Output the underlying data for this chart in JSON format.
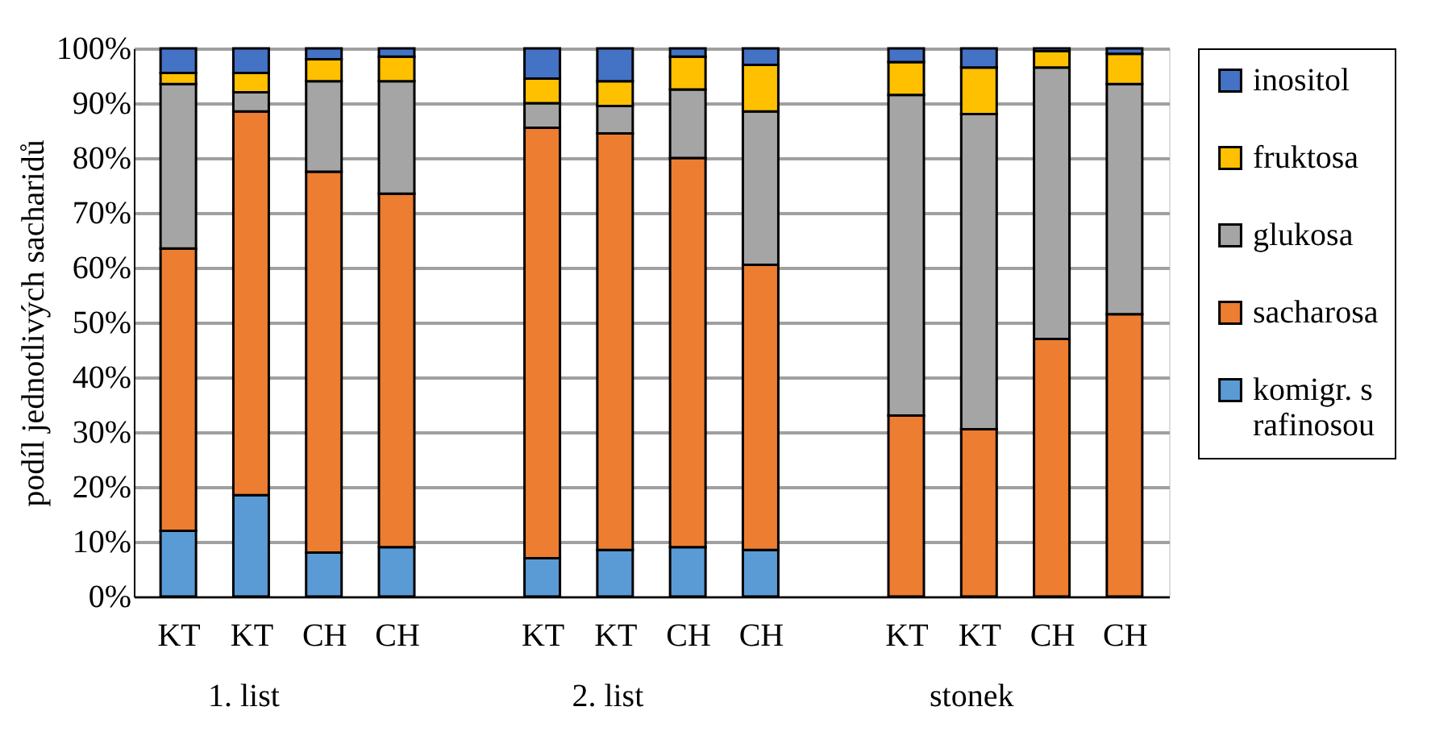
{
  "chart_data": {
    "type": "bar",
    "stacked": true,
    "ylabel": "podíl jednotlivých sacharidů",
    "categories": [
      "KT",
      "KT",
      "CH",
      "CH",
      null,
      "KT",
      "KT",
      "CH",
      "CH",
      null,
      "KT",
      "KT",
      "CH",
      "CH"
    ],
    "series": [
      {
        "name": "komigr. s rafinosou",
        "color": "#5b9bd5",
        "values": [
          12,
          18.5,
          8,
          9,
          null,
          7,
          8.5,
          9,
          8.5,
          null,
          0,
          0,
          null,
          null
        ]
      },
      {
        "name": "sacharosa",
        "color": "#ed7d31",
        "values": [
          51.5,
          70,
          69.5,
          64.5,
          null,
          78.5,
          76,
          71,
          52,
          null,
          33,
          30.5,
          47,
          51.5
        ]
      },
      {
        "name": "glukosa",
        "color": "#a5a5a5",
        "values": [
          30,
          3.5,
          16.5,
          20.5,
          null,
          4.5,
          5,
          12.5,
          28,
          null,
          58.5,
          57.5,
          49.5,
          42
        ]
      },
      {
        "name": "fruktosa",
        "color": "#ffc000",
        "values": [
          2,
          3.5,
          4,
          4.5,
          null,
          4.5,
          4.5,
          6,
          8.5,
          null,
          6,
          8.5,
          3,
          5.5
        ]
      },
      {
        "name": "inositol",
        "color": "#4472c4",
        "values": [
          4.5,
          4.5,
          2,
          1.5,
          null,
          5.5,
          6,
          1.5,
          3,
          null,
          2.5,
          3.5,
          0.5,
          1
        ]
      }
    ],
    "ylim": [
      0,
      100
    ],
    "yticks": [
      {
        "value": 0,
        "label": "0%"
      },
      {
        "value": 10,
        "label": "10%"
      },
      {
        "value": 20,
        "label": "20%"
      },
      {
        "value": 30,
        "label": "30%"
      },
      {
        "value": 40,
        "label": "40%"
      },
      {
        "value": 50,
        "label": "50%"
      },
      {
        "value": 60,
        "label": "60%"
      },
      {
        "value": 70,
        "label": "70%"
      },
      {
        "value": 80,
        "label": "80%"
      },
      {
        "value": 90,
        "label": "90%"
      },
      {
        "value": 100,
        "label": "100%"
      }
    ],
    "annotations": [
      "1. list",
      "2. list",
      "stonek"
    ],
    "grid": "y",
    "legend": "right"
  }
}
